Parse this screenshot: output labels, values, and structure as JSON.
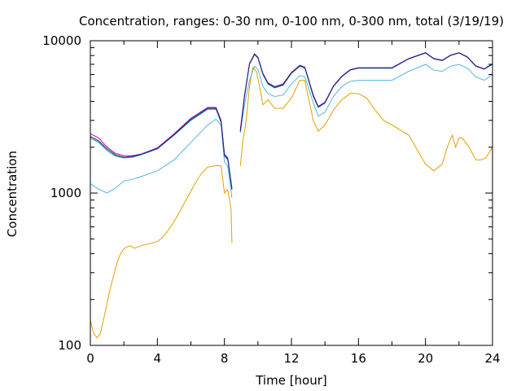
{
  "chart_data": {
    "type": "line",
    "title": "Concentration, ranges: 0-30 nm, 0-100 nm, 0-300 nm, total (3/19/19)",
    "xlabel": "Time [hour]",
    "ylabel": "Concentration",
    "xlim": [
      0,
      24
    ],
    "ylim": [
      100,
      10000
    ],
    "yscale": "log",
    "grid": false,
    "legend": "none",
    "xticks": [
      "0",
      "4",
      "8",
      "12",
      "16",
      "20",
      "24"
    ],
    "yticks": [
      "100",
      "1000",
      "10000"
    ],
    "series": [
      {
        "color": "#e69f00",
        "x": [
          0,
          0.2,
          0.4,
          0.6,
          0.8,
          1.0,
          1.2,
          1.4,
          1.6,
          1.8,
          2.0,
          2.2,
          2.4,
          2.6,
          2.8,
          3.0,
          3.5,
          4.0,
          4.3,
          4.6,
          5.0,
          5.4,
          5.8,
          6.2,
          6.6,
          7.0,
          7.5,
          7.8,
          8.0,
          8.2,
          8.4,
          8.45,
          null,
          8.95,
          9.1,
          9.3,
          9.5,
          9.7,
          9.9,
          10.1,
          10.3,
          10.6,
          11.0,
          11.5,
          12.0,
          12.5,
          12.8,
          13.0,
          13.3,
          13.6,
          14.0,
          14.5,
          15.0,
          15.5,
          16.0,
          16.5,
          17.0,
          17.5,
          18.0,
          19.0,
          20.0,
          20.5,
          21.0,
          21.3,
          21.6,
          21.8,
          22.0,
          22.2,
          22.6,
          23.0,
          23.3,
          23.6,
          24.0
        ],
        "y": [
          145,
          120,
          112,
          120,
          150,
          190,
          240,
          290,
          350,
          400,
          430,
          445,
          450,
          435,
          440,
          450,
          465,
          480,
          510,
          560,
          650,
          780,
          940,
          1130,
          1330,
          1480,
          1510,
          1510,
          1000,
          1050,
          780,
          470,
          null,
          1500,
          2200,
          3000,
          5000,
          6700,
          6300,
          5000,
          3800,
          4100,
          3600,
          3600,
          4200,
          5500,
          5500,
          4300,
          3000,
          2550,
          2800,
          3500,
          4100,
          4500,
          4500,
          4200,
          3500,
          3000,
          2800,
          2400,
          1550,
          1400,
          1550,
          2000,
          2400,
          2000,
          2300,
          2300,
          2000,
          1650,
          1650,
          1700,
          2000
        ]
      },
      {
        "color": "#56b4e9",
        "x": [
          0,
          0.5,
          1.0,
          1.5,
          2.0,
          2.5,
          3.0,
          4.0,
          5.0,
          6.0,
          7.0,
          7.5,
          7.8,
          8.0,
          8.2,
          8.45,
          null,
          8.95,
          9.2,
          9.5,
          9.8,
          10.0,
          10.3,
          10.6,
          11.0,
          11.5,
          12.0,
          12.5,
          12.8,
          13.0,
          13.3,
          13.6,
          14.0,
          14.5,
          15.0,
          15.5,
          16.0,
          17.0,
          18.0,
          19.0,
          20.0,
          20.5,
          21.0,
          21.5,
          22.0,
          22.5,
          23.0,
          23.5,
          24.0
        ],
        "y": [
          1150,
          1060,
          1000,
          1080,
          1200,
          1230,
          1280,
          1400,
          1650,
          2150,
          2800,
          3050,
          2800,
          1600,
          1500,
          930,
          null,
          2500,
          3800,
          5500,
          6800,
          6500,
          5000,
          4500,
          4300,
          4400,
          5200,
          5900,
          5800,
          5000,
          3900,
          3200,
          3400,
          4300,
          5000,
          5400,
          5500,
          5500,
          5500,
          6300,
          7000,
          6400,
          6300,
          6800,
          7000,
          6600,
          5800,
          5500,
          6000
        ]
      },
      {
        "color": "#009e73",
        "x": [
          0,
          0.5,
          1.0,
          1.5,
          2.0,
          2.5,
          3.0,
          4.0,
          5.0,
          6.0,
          7.0,
          7.5,
          7.8,
          8.0,
          8.2,
          8.45,
          null,
          8.95,
          9.2,
          9.5,
          9.8,
          10.0,
          10.3,
          10.6,
          11.0,
          11.5,
          12.0,
          12.5,
          12.8,
          13.0,
          13.3,
          13.6,
          14.0,
          14.5,
          15.0,
          15.5,
          16.0,
          17.0,
          18.0,
          19.0,
          20.0,
          20.5,
          21.0,
          21.5,
          22.0,
          22.5,
          23.0,
          23.5,
          24.0
        ],
        "y": [
          2300,
          2150,
          1900,
          1750,
          1700,
          1720,
          1780,
          1950,
          2400,
          3000,
          3550,
          3550,
          2900,
          1750,
          1650,
          1050,
          null,
          2500,
          4300,
          7000,
          8100,
          7700,
          6000,
          5200,
          4900,
          5100,
          6100,
          6800,
          6600,
          5600,
          4300,
          3650,
          3900,
          5000,
          5800,
          6400,
          6600,
          6600,
          6600,
          7600,
          8300,
          7600,
          7400,
          8000,
          8300,
          7800,
          6800,
          6500,
          7000
        ]
      },
      {
        "color": "#cc00cc",
        "x": [
          0,
          0.5,
          1.0,
          1.5,
          2.0,
          2.5,
          3.0,
          4.0,
          5.0,
          6.0,
          7.0,
          7.5,
          7.8,
          8.0,
          8.2,
          8.45,
          null,
          8.95,
          9.2,
          9.5,
          9.8,
          10.0,
          10.3,
          10.6,
          11.0,
          11.5,
          12.0,
          12.5,
          12.8,
          13.0,
          13.3,
          13.6,
          14.0,
          14.5,
          15.0,
          15.5,
          16.0,
          17.0,
          18.0,
          19.0,
          20.0,
          20.5,
          21.0,
          21.5,
          22.0,
          22.5,
          23.0,
          23.5,
          24.0
        ],
        "y": [
          2450,
          2300,
          2000,
          1820,
          1760,
          1760,
          1800,
          1980,
          2450,
          3100,
          3650,
          3650,
          3000,
          1800,
          1700,
          1080,
          null,
          2600,
          4400,
          7100,
          8200,
          7800,
          6100,
          5300,
          5000,
          5200,
          6200,
          6900,
          6700,
          5700,
          4400,
          3700,
          3950,
          5050,
          5850,
          6450,
          6650,
          6650,
          6650,
          7650,
          8350,
          7650,
          7450,
          8050,
          8350,
          7850,
          6850,
          6550,
          7050
        ]
      },
      {
        "color": "#1a237e",
        "x": [
          0,
          0.5,
          1.0,
          1.5,
          2.0,
          2.5,
          3.0,
          4.0,
          5.0,
          6.0,
          7.0,
          7.5,
          7.8,
          8.0,
          8.2,
          8.45,
          null,
          8.95,
          9.2,
          9.5,
          9.8,
          10.0,
          10.3,
          10.6,
          11.0,
          11.5,
          12.0,
          12.5,
          12.8,
          13.0,
          13.3,
          13.6,
          14.0,
          14.5,
          15.0,
          15.5,
          16.0,
          17.0,
          18.0,
          19.0,
          20.0,
          20.5,
          21.0,
          21.5,
          22.0,
          22.5,
          23.0,
          23.5,
          24.0
        ],
        "y": [
          2350,
          2200,
          1950,
          1780,
          1720,
          1740,
          1790,
          1960,
          2420,
          3050,
          3600,
          3600,
          2950,
          1780,
          1680,
          1060,
          null,
          2550,
          4350,
          7050,
          8150,
          7750,
          6050,
          5250,
          4950,
          5150,
          6150,
          6850,
          6650,
          5650,
          4350,
          3680,
          3920,
          5020,
          5820,
          6420,
          6620,
          6620,
          6620,
          7620,
          8320,
          7620,
          7420,
          8020,
          8320,
          7820,
          6820,
          6520,
          7020
        ]
      }
    ]
  }
}
